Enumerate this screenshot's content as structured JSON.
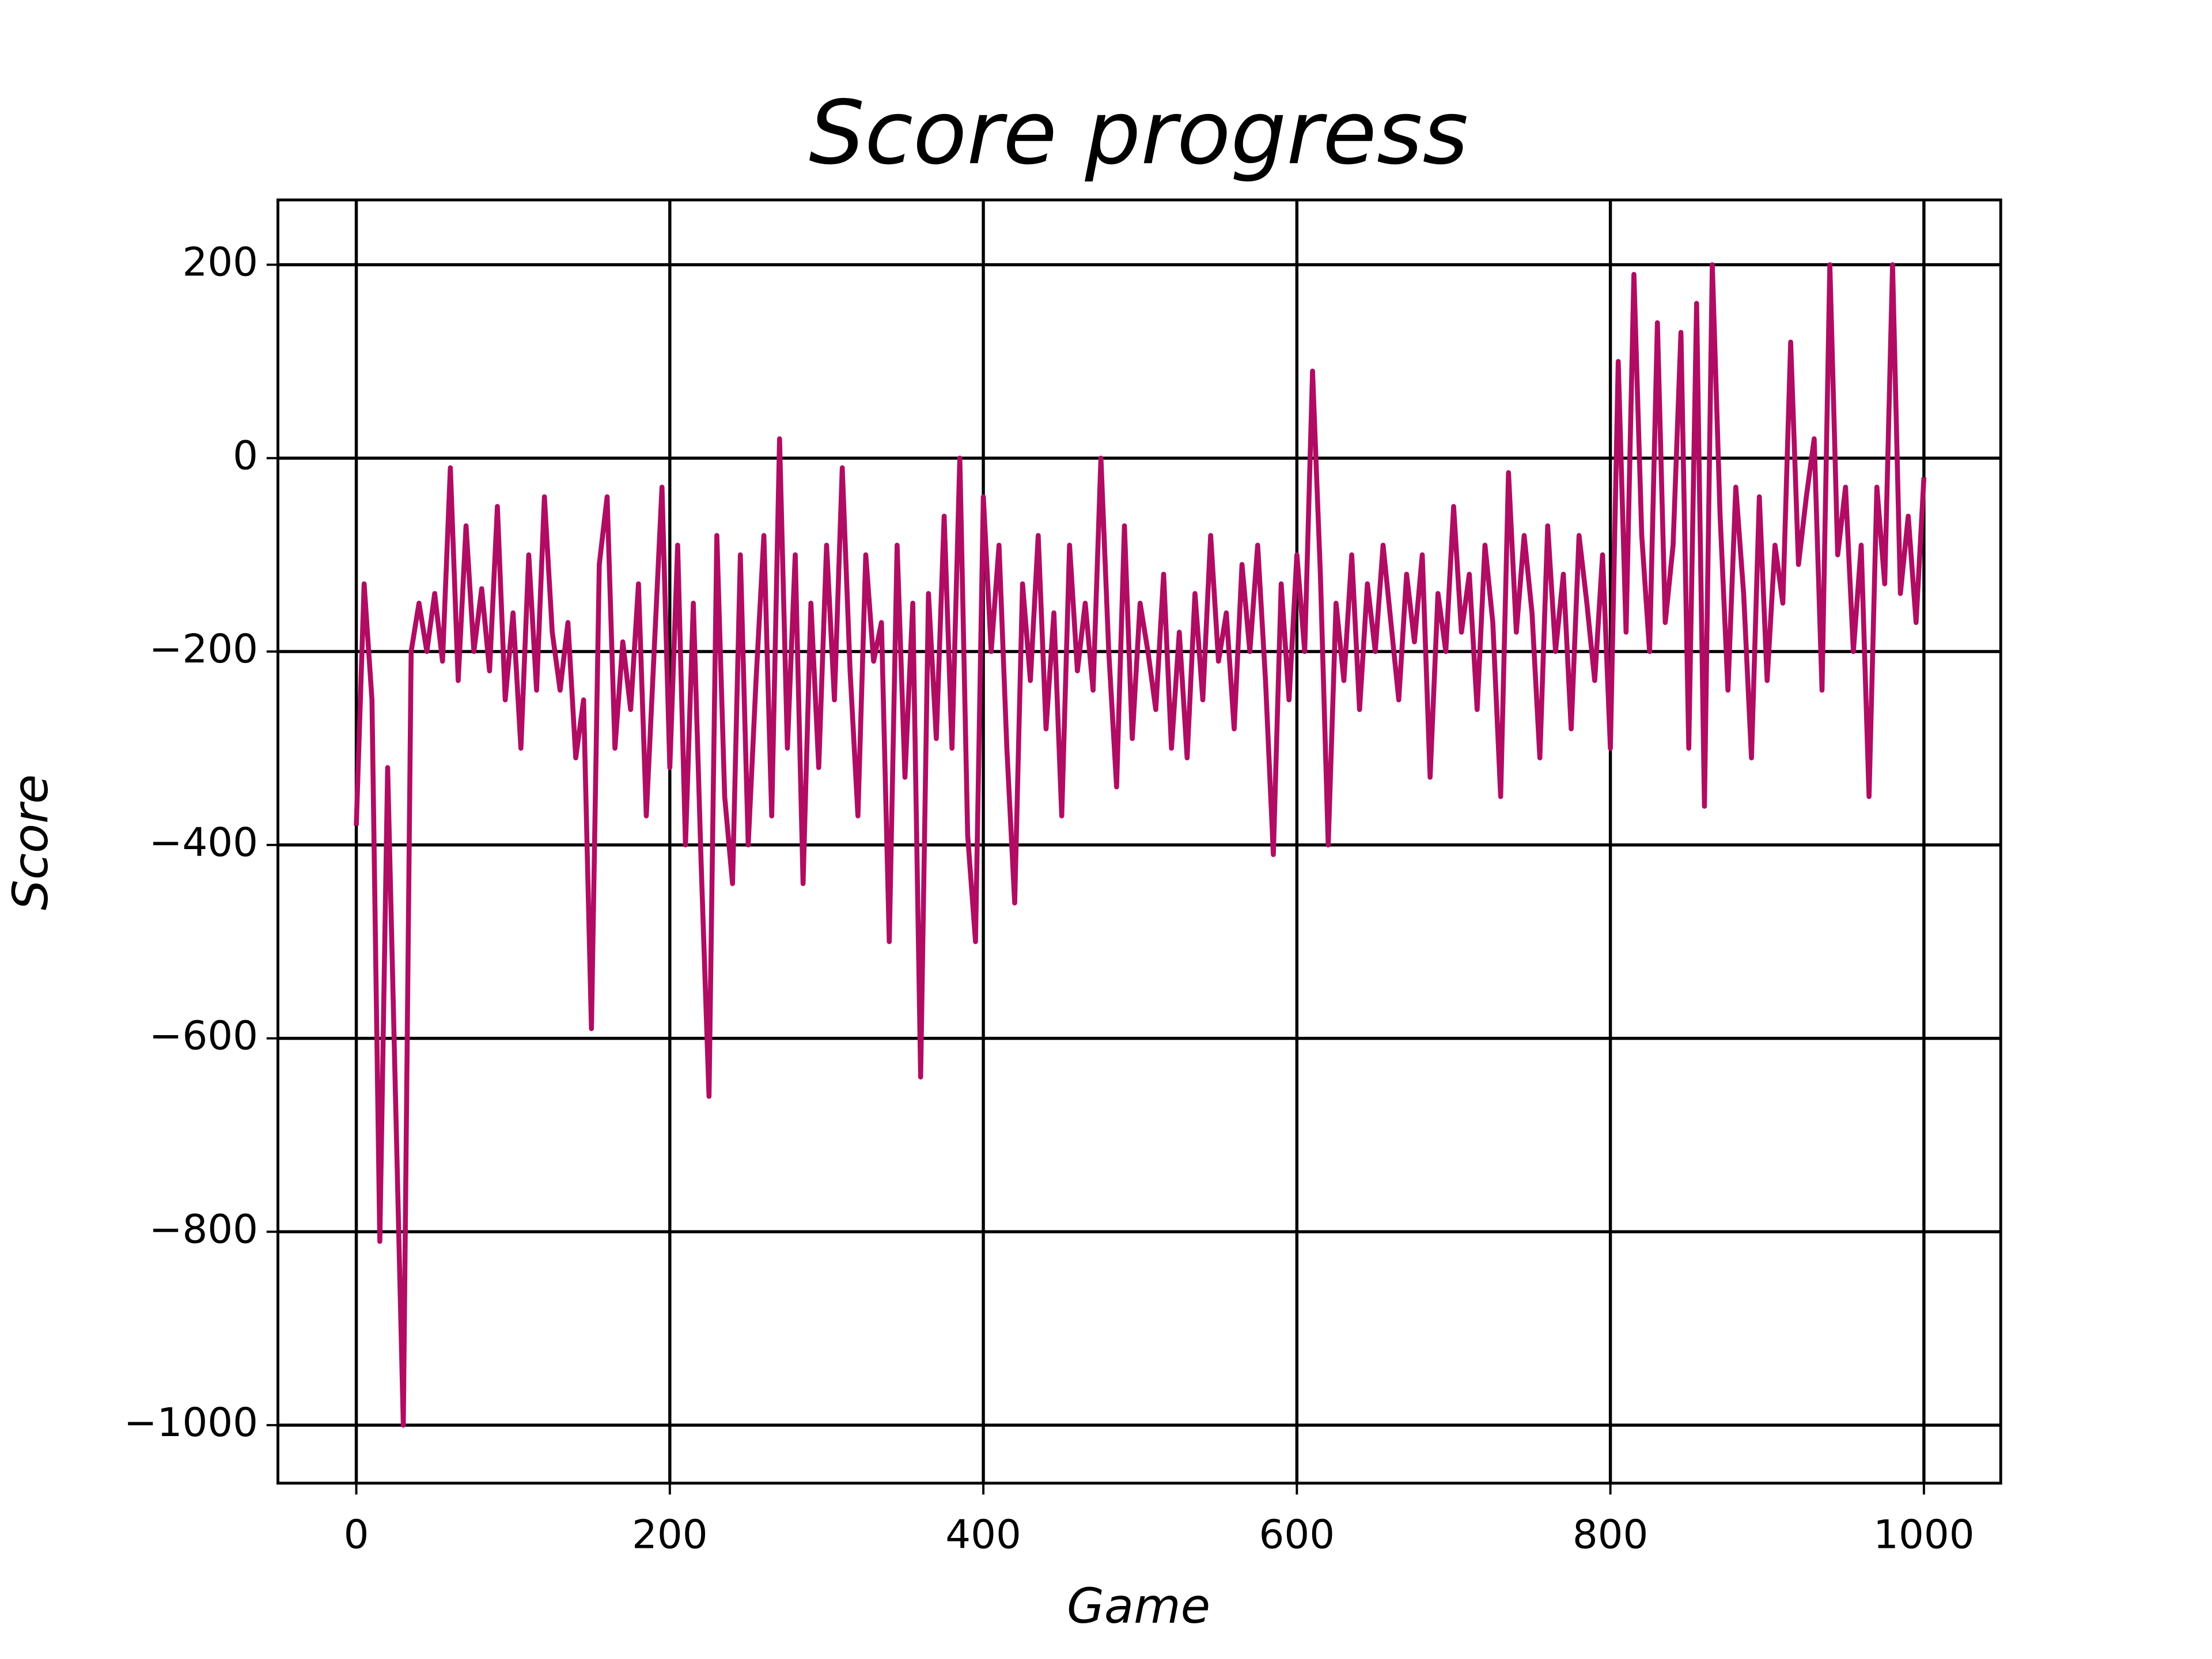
{
  "chart_data": {
    "type": "line",
    "title": "Score progress",
    "x_label": "Game",
    "y_label": "Score",
    "color": "#b10c63",
    "grid": true,
    "xlim": [
      -50,
      1049
    ],
    "ylim": [
      -1060,
      267
    ],
    "xticks": [
      0,
      200,
      400,
      600,
      800,
      1000
    ],
    "yticks": [
      {
        "value": -1000,
        "label": "−1000"
      },
      {
        "value": -800,
        "label": "−800"
      },
      {
        "value": -600,
        "label": "−600"
      },
      {
        "value": -400,
        "label": "−400"
      },
      {
        "value": -200,
        "label": "−200"
      },
      0,
      200
    ],
    "x": [
      0,
      5,
      10,
      15,
      20,
      25,
      30,
      35,
      40,
      45,
      50,
      55,
      60,
      65,
      70,
      75,
      80,
      85,
      90,
      95,
      100,
      105,
      110,
      115,
      120,
      125,
      130,
      135,
      140,
      145,
      150,
      155,
      160,
      165,
      170,
      175,
      180,
      185,
      190,
      195,
      200,
      205,
      210,
      215,
      220,
      225,
      230,
      235,
      240,
      245,
      250,
      255,
      260,
      265,
      270,
      275,
      280,
      285,
      290,
      295,
      300,
      305,
      310,
      315,
      320,
      325,
      330,
      335,
      340,
      345,
      350,
      355,
      360,
      365,
      370,
      375,
      380,
      385,
      390,
      395,
      400,
      405,
      410,
      415,
      420,
      425,
      430,
      435,
      440,
      445,
      450,
      455,
      460,
      465,
      470,
      475,
      480,
      485,
      490,
      495,
      500,
      505,
      510,
      515,
      520,
      525,
      530,
      535,
      540,
      545,
      550,
      555,
      560,
      565,
      570,
      575,
      580,
      585,
      590,
      595,
      600,
      605,
      610,
      615,
      620,
      625,
      630,
      635,
      640,
      645,
      650,
      655,
      660,
      665,
      670,
      675,
      680,
      685,
      690,
      695,
      700,
      705,
      710,
      715,
      720,
      725,
      730,
      735,
      740,
      745,
      750,
      755,
      760,
      765,
      770,
      775,
      780,
      785,
      790,
      795,
      800,
      805,
      810,
      815,
      820,
      825,
      830,
      835,
      840,
      845,
      850,
      855,
      860,
      865,
      870,
      875,
      880,
      885,
      890,
      895,
      900,
      905,
      910,
      915,
      920,
      925,
      930,
      935,
      940,
      945,
      950,
      955,
      960,
      965,
      970,
      975,
      980,
      985,
      990,
      995,
      1000
    ],
    "values": [
      -380,
      -130,
      -250,
      -810,
      -320,
      -660,
      -1000,
      -200,
      -150,
      -200,
      -140,
      -210,
      -10,
      -230,
      -70,
      -200,
      -135,
      -220,
      -50,
      -250,
      -160,
      -300,
      -100,
      -240,
      -40,
      -180,
      -240,
      -170,
      -310,
      -250,
      -590,
      -110,
      -40,
      -300,
      -190,
      -260,
      -130,
      -370,
      -200,
      -30,
      -320,
      -90,
      -400,
      -150,
      -420,
      -660,
      -80,
      -350,
      -440,
      -100,
      -400,
      -230,
      -80,
      -370,
      20,
      -300,
      -100,
      -440,
      -150,
      -320,
      -90,
      -250,
      -10,
      -220,
      -370,
      -100,
      -210,
      -170,
      -500,
      -90,
      -330,
      -150,
      -640,
      -140,
      -290,
      -60,
      -300,
      0,
      -390,
      -500,
      -40,
      -200,
      -90,
      -300,
      -460,
      -130,
      -230,
      -80,
      -280,
      -160,
      -370,
      -90,
      -220,
      -150,
      -240,
      0,
      -200,
      -340,
      -70,
      -290,
      -150,
      -200,
      -260,
      -120,
      -300,
      -180,
      -310,
      -140,
      -250,
      -80,
      -210,
      -160,
      -280,
      -110,
      -200,
      -90,
      -230,
      -410,
      -130,
      -250,
      -100,
      -200,
      90,
      -120,
      -400,
      -150,
      -230,
      -100,
      -260,
      -130,
      -200,
      -90,
      -170,
      -250,
      -120,
      -190,
      -100,
      -330,
      -140,
      -200,
      -50,
      -180,
      -120,
      -260,
      -90,
      -170,
      -350,
      -15,
      -180,
      -80,
      -160,
      -310,
      -70,
      -200,
      -120,
      -280,
      -80,
      -150,
      -230,
      -100,
      -300,
      100,
      -180,
      190,
      -80,
      -200,
      140,
      -170,
      -90,
      130,
      -300,
      160,
      -360,
      200,
      -60,
      -240,
      -30,
      -140,
      -310,
      -40,
      -230,
      -90,
      -150,
      120,
      -110,
      -40,
      20,
      -240,
      200,
      -100,
      -30,
      -200,
      -90,
      -350,
      -30,
      -130,
      200,
      -140,
      -60,
      -170,
      -20
    ]
  }
}
